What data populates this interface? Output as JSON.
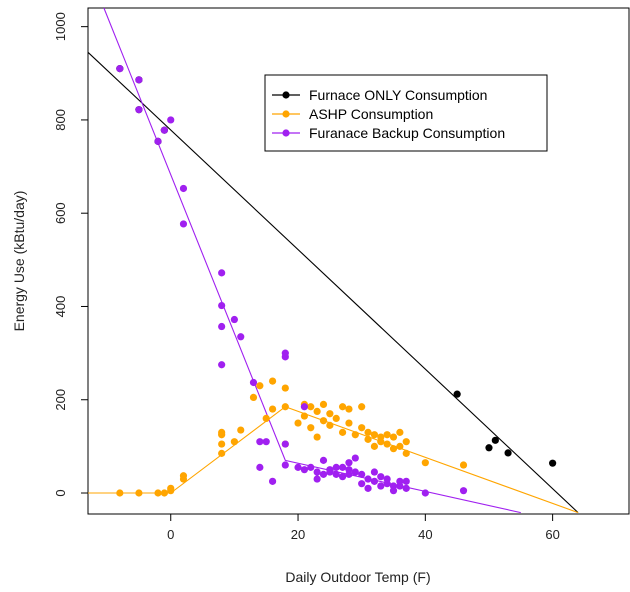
{
  "chart_data": {
    "type": "scatter",
    "title": "",
    "xlabel": "Daily Outdoor Temp (F)",
    "ylabel": "Energy Use (kBtu/day)",
    "xlim": [
      -13,
      72
    ],
    "ylim": [
      -45,
      1040
    ],
    "x_ticks": [
      0,
      20,
      40,
      60
    ],
    "y_ticks": [
      0,
      200,
      400,
      600,
      800,
      1000
    ],
    "grid": false,
    "legend_position": "top-right",
    "series": [
      {
        "name": "Furnace ONLY Consumption",
        "color": "#000000",
        "points": [
          [
            -8,
            910
          ],
          [
            -5,
            886
          ],
          [
            -5,
            822
          ],
          [
            -2,
            754
          ],
          [
            -1,
            778
          ],
          [
            45,
            212
          ],
          [
            50,
            97
          ],
          [
            51,
            113
          ],
          [
            53,
            86
          ],
          [
            60,
            64
          ]
        ],
        "fit_line": [
          [
            -13,
            945
          ],
          [
            64,
            -42
          ]
        ]
      },
      {
        "name": "ASHP Consumption",
        "color": "#FFA500",
        "points": [
          [
            -8,
            0
          ],
          [
            -5,
            0
          ],
          [
            -2,
            0
          ],
          [
            -1,
            0
          ],
          [
            0,
            5
          ],
          [
            0,
            10
          ],
          [
            2,
            30
          ],
          [
            2,
            37
          ],
          [
            8,
            85
          ],
          [
            8,
            105
          ],
          [
            8,
            125
          ],
          [
            8,
            130
          ],
          [
            10,
            110
          ],
          [
            11,
            135
          ],
          [
            13,
            205
          ],
          [
            14,
            230
          ],
          [
            15,
            160
          ],
          [
            16,
            240
          ],
          [
            16,
            180
          ],
          [
            18,
            225
          ],
          [
            18,
            185
          ],
          [
            18,
            105
          ],
          [
            20,
            150
          ],
          [
            21,
            190
          ],
          [
            21,
            165
          ],
          [
            22,
            185
          ],
          [
            22,
            140
          ],
          [
            23,
            120
          ],
          [
            23,
            175
          ],
          [
            24,
            155
          ],
          [
            24,
            190
          ],
          [
            25,
            145
          ],
          [
            25,
            170
          ],
          [
            26,
            160
          ],
          [
            27,
            185
          ],
          [
            27,
            130
          ],
          [
            28,
            180
          ],
          [
            28,
            150
          ],
          [
            29,
            125
          ],
          [
            30,
            140
          ],
          [
            30,
            185
          ],
          [
            31,
            130
          ],
          [
            31,
            115
          ],
          [
            32,
            125
          ],
          [
            32,
            100
          ],
          [
            33,
            120
          ],
          [
            33,
            110
          ],
          [
            34,
            125
          ],
          [
            34,
            105
          ],
          [
            35,
            120
          ],
          [
            35,
            95
          ],
          [
            36,
            130
          ],
          [
            36,
            100
          ],
          [
            37,
            110
          ],
          [
            37,
            85
          ],
          [
            40,
            65
          ],
          [
            46,
            60
          ]
        ],
        "fit_line": [
          [
            -13,
            0
          ],
          [
            0,
            0
          ],
          [
            18,
            185
          ],
          [
            64,
            -42
          ]
        ]
      },
      {
        "name": "Furanace Backup Consumption",
        "color": "#A020F0",
        "points": [
          [
            -8,
            910
          ],
          [
            -5,
            886
          ],
          [
            -5,
            822
          ],
          [
            -2,
            754
          ],
          [
            -1,
            778
          ],
          [
            0,
            800
          ],
          [
            2,
            653
          ],
          [
            2,
            577
          ],
          [
            8,
            472
          ],
          [
            8,
            402
          ],
          [
            8,
            357
          ],
          [
            8,
            275
          ],
          [
            10,
            372
          ],
          [
            11,
            335
          ],
          [
            13,
            237
          ],
          [
            14,
            55
          ],
          [
            14,
            110
          ],
          [
            15,
            110
          ],
          [
            16,
            25
          ],
          [
            18,
            300
          ],
          [
            18,
            292
          ],
          [
            18,
            105
          ],
          [
            18,
            60
          ],
          [
            20,
            55
          ],
          [
            21,
            50
          ],
          [
            21,
            185
          ],
          [
            22,
            55
          ],
          [
            23,
            45
          ],
          [
            23,
            30
          ],
          [
            24,
            40
          ],
          [
            24,
            70
          ],
          [
            25,
            50
          ],
          [
            25,
            45
          ],
          [
            26,
            40
          ],
          [
            26,
            55
          ],
          [
            27,
            35
          ],
          [
            27,
            55
          ],
          [
            28,
            65
          ],
          [
            28,
            50
          ],
          [
            28,
            40
          ],
          [
            29,
            75
          ],
          [
            29,
            45
          ],
          [
            30,
            20
          ],
          [
            30,
            40
          ],
          [
            31,
            10
          ],
          [
            31,
            30
          ],
          [
            32,
            45
          ],
          [
            32,
            25
          ],
          [
            33,
            15
          ],
          [
            33,
            35
          ],
          [
            34,
            20
          ],
          [
            34,
            30
          ],
          [
            35,
            15
          ],
          [
            35,
            5
          ],
          [
            36,
            25
          ],
          [
            36,
            15
          ],
          [
            37,
            25
          ],
          [
            37,
            10
          ],
          [
            40,
            0
          ],
          [
            46,
            5
          ]
        ],
        "fit_line": [
          [
            -10.5,
            1040
          ],
          [
            18,
            70
          ],
          [
            55,
            -42
          ]
        ]
      }
    ]
  }
}
